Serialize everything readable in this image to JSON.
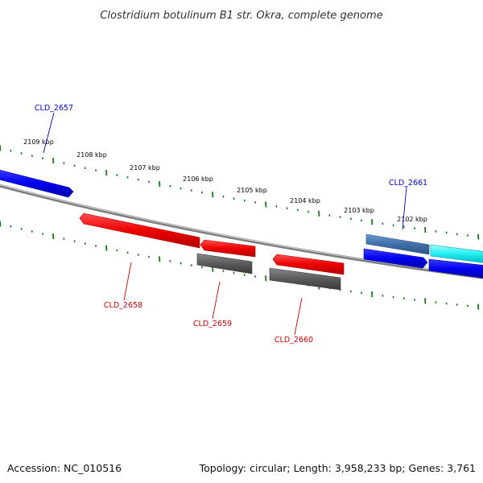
{
  "title": "Clostridium botulinum B1 str. Okra, complete genome",
  "footer": {
    "accession": "Accession: NC_010516",
    "summary": "Topology: circular; Length: 3,958,233 bp; Genes: 3,761"
  },
  "colors": {
    "backbone": "#8a8a8a",
    "tick_green": "#1a7a1a",
    "forward_label": "#0000cc",
    "reverse_label": "#cc0000"
  },
  "scale_ticks": [
    {
      "label": "2109 kbp"
    },
    {
      "label": "2108 kbp"
    },
    {
      "label": "2107 kbp"
    },
    {
      "label": "2106 kbp"
    },
    {
      "label": "2105 kbp"
    },
    {
      "label": "2104 kbp"
    },
    {
      "label": "2103 kbp"
    },
    {
      "label": "2102 kbp"
    }
  ],
  "genes": [
    {
      "label": "CLD_2657",
      "strand": "forward"
    },
    {
      "label": "CLD_2658",
      "strand": "reverse"
    },
    {
      "label": "CLD_2659",
      "strand": "reverse"
    },
    {
      "label": "CLD_2660",
      "strand": "reverse"
    },
    {
      "label": "CLD_2661",
      "strand": "forward"
    }
  ]
}
